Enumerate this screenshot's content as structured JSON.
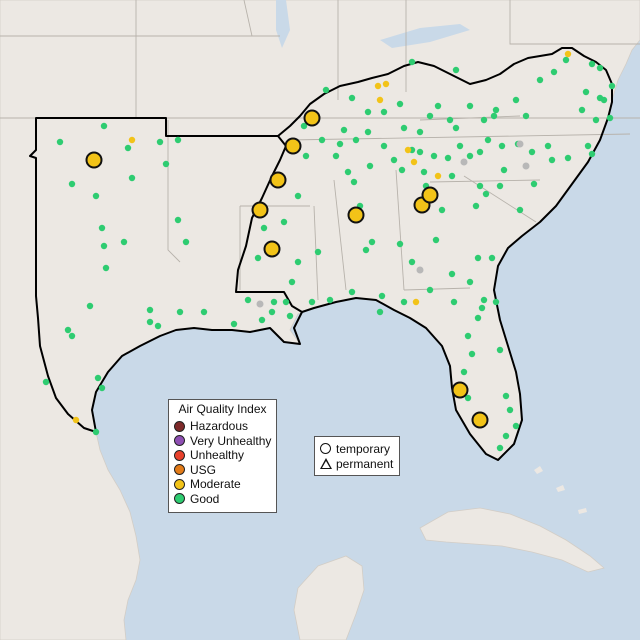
{
  "legend": {
    "title": "Air Quality Index",
    "categories": [
      {
        "label": "Hazardous",
        "color": "#7e2a2a"
      },
      {
        "label": "Very Unhealthy",
        "color": "#8e4fb3"
      },
      {
        "label": "Unhealthy",
        "color": "#e8412c"
      },
      {
        "label": "USG",
        "color": "#e37b18"
      },
      {
        "label": "Moderate",
        "color": "#f2c318"
      },
      {
        "label": "Good",
        "color": "#2ecc71"
      }
    ]
  },
  "monitor_type_legend": {
    "temporary": "temporary",
    "permanent": "permanent"
  },
  "colors": {
    "water": "#c9d9e8",
    "land": "#ece8e3",
    "region_border": "#000000",
    "no_data": "#b8b8b8"
  }
}
